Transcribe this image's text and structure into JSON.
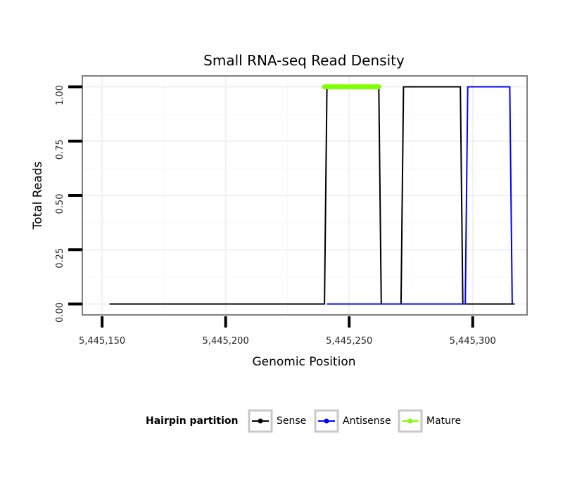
{
  "chart_data": {
    "type": "line",
    "title": "Small RNA-seq Read Density",
    "xlabel": "Genomic Position",
    "ylabel": "Total Reads",
    "xlim": [
      5445142,
      5445322
    ],
    "ylim": [
      -0.05,
      1.05
    ],
    "x_ticks": [
      5445150,
      5445200,
      5445250,
      5445300
    ],
    "x_tick_labels": [
      "5,445,150",
      "5,445,200",
      "5,445,250",
      "5,445,300"
    ],
    "y_ticks": [
      0,
      0.25,
      0.5,
      0.75,
      1.0
    ],
    "y_tick_labels": [
      "0.00",
      "0.25",
      "0.50",
      "0.75",
      "1.00"
    ],
    "grid": true,
    "legend_position": "bottom",
    "legend_title": "Hairpin partition",
    "series": [
      {
        "name": "Sense",
        "color": "#000000",
        "x": [
          5445153,
          5445240,
          5445241,
          5445262,
          5445263,
          5445271,
          5445272,
          5445295,
          5445296,
          5445317
        ],
        "y": [
          0,
          0,
          1,
          1,
          0,
          0,
          1,
          1,
          0,
          0
        ]
      },
      {
        "name": "Antisense",
        "color": "#0000ff",
        "x": [
          5445241,
          5445297,
          5445298,
          5445315,
          5445316
        ],
        "y": [
          0,
          0,
          1,
          1,
          0
        ]
      },
      {
        "name": "Mature",
        "color": "#7fff00",
        "x": [
          5445240,
          5445262
        ],
        "y": [
          1,
          1
        ]
      }
    ]
  }
}
